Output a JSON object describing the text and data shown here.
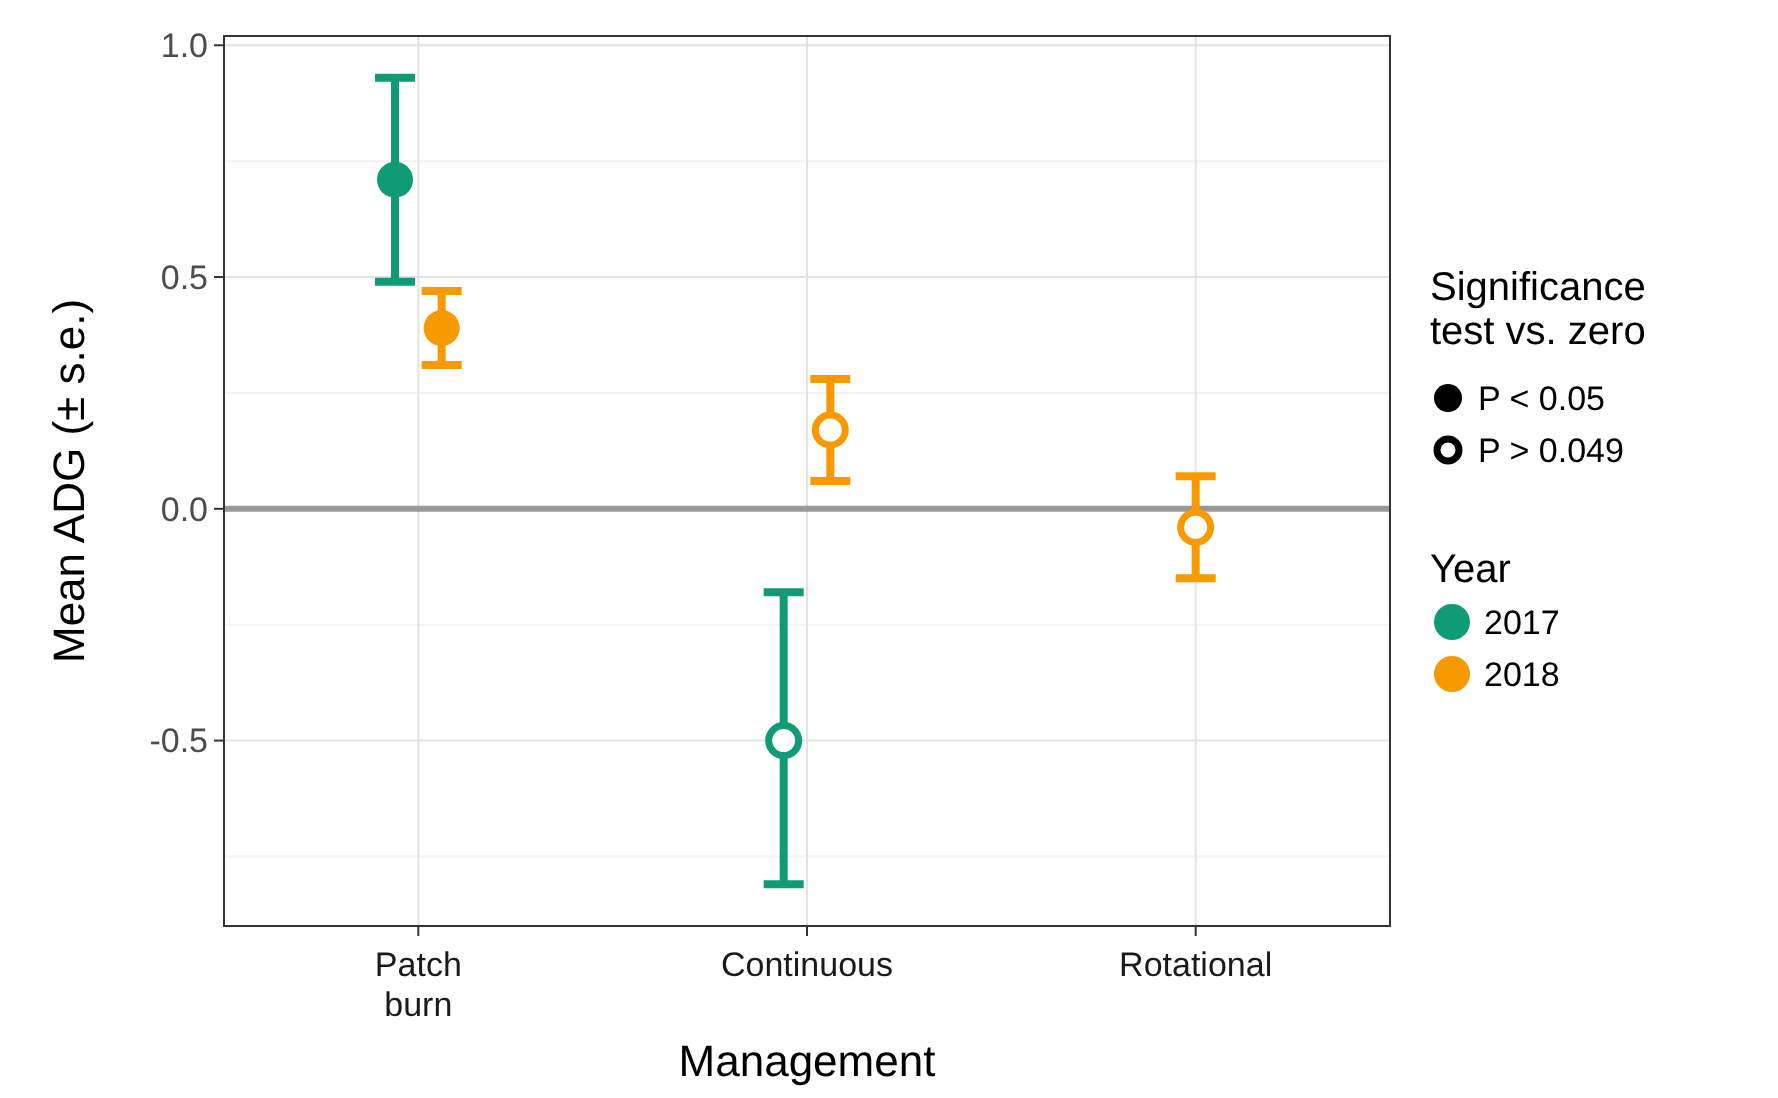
{
  "chart_data": {
    "type": "scatter",
    "xlabel": "Management",
    "ylabel": "Mean ADG (± s.e.)",
    "legend_title": "Significance test vs. zero",
    "categories": [
      "Patch\nburn",
      "Continuous",
      "Rotational"
    ],
    "series": [
      {
        "name": "P < 0.05",
        "color": "#000000",
        "x": [
          "Patch\nburn",
          "Patch\nburn"
        ],
        "values": [
          0.71,
          0.39
        ],
        "colors": [
          "#0f9b75",
          "#f79a00"
        ],
        "errors": [
          [
            0.49,
            0.93
          ],
          [
            0.31,
            0.47
          ]
        ]
      },
      {
        "name": "P > 0.049",
        "color": "#000000",
        "x": [
          "Continuous",
          "Continuous",
          "Rotational"
        ],
        "values": [
          -0.5,
          0.17,
          -0.04
        ],
        "colors": [
          "#0f9b75",
          "#f79a00",
          "#f79a00"
        ],
        "errors": [
          [
            -0.81,
            -0.18
          ],
          [
            0.06,
            0.28
          ],
          [
            -0.15,
            0.07
          ]
        ]
      }
    ],
    "ylim": [
      -0.9,
      1.02
    ],
    "yticks": [
      {
        "value": 1,
        "label": "1.0"
      },
      0.5,
      {
        "value": 0,
        "label": "0.0"
      },
      -0.5
    ],
    "ref_lines": [
      {
        "axis": "y",
        "value": 0,
        "color": "#999999"
      }
    ],
    "annotations": [
      "Year",
      "2017",
      "2018"
    ],
    "grid": true,
    "legend": "right",
    "marker": "circle"
  }
}
